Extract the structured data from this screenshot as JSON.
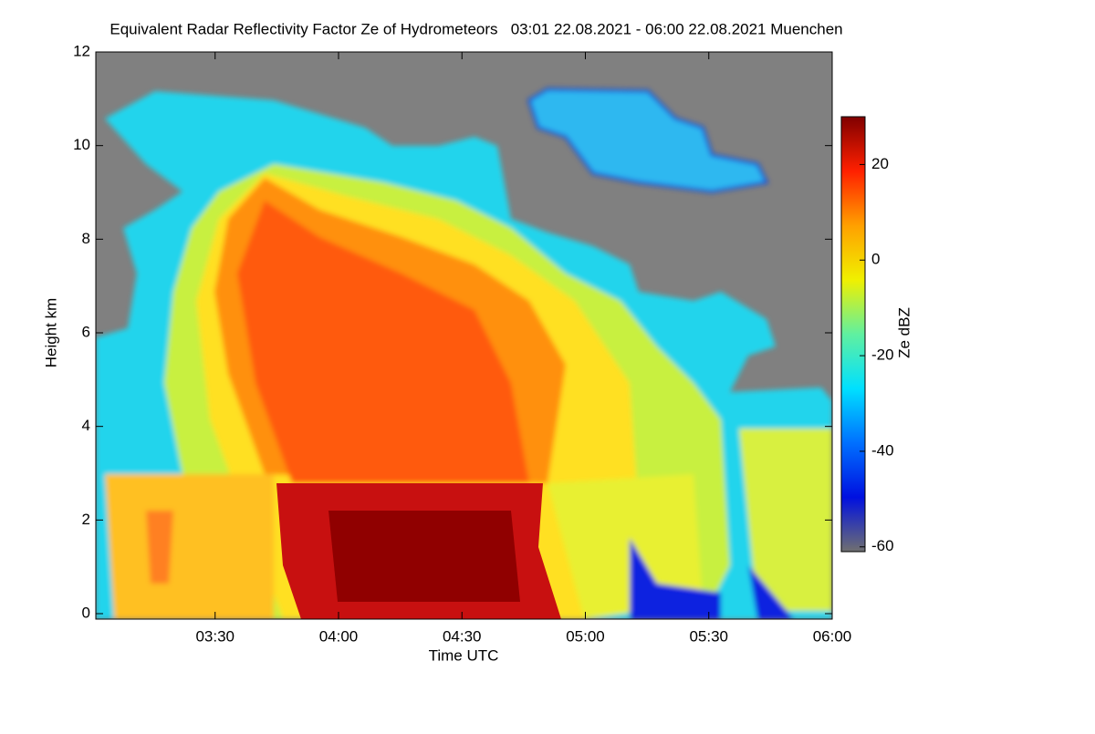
{
  "chart_data": {
    "type": "heatmap",
    "title": "Equivalent Radar Reflectivity Factor Ze of Hydrometeors   03:01 22.08.2021 - 06:00 22.08.2021 Muenchen",
    "x_label": "Time UTC",
    "y_label": "Height km",
    "colorbar_label": "Ze dBZ",
    "xlim": [
      181,
      360
    ],
    "xticks": [
      {
        "value": 210,
        "label": "03:30"
      },
      {
        "value": 240,
        "label": "04:00"
      },
      {
        "value": 270,
        "label": "04:30"
      },
      {
        "value": 300,
        "label": "05:00"
      },
      {
        "value": 330,
        "label": "05:30"
      },
      {
        "value": 360,
        "label": "06:00"
      }
    ],
    "ylim": [
      0,
      12
    ],
    "yticks": [
      0,
      2,
      4,
      6,
      8,
      10,
      12
    ],
    "clim": [
      -61,
      30
    ],
    "cticks": [
      -60,
      -40,
      -20,
      0,
      20
    ],
    "colormap": [
      "#707070",
      "#0010e0",
      "#0070ff",
      "#00e0ff",
      "#60f0a0",
      "#f0f000",
      "#ffa000",
      "#ff2000",
      "#800000"
    ]
  }
}
